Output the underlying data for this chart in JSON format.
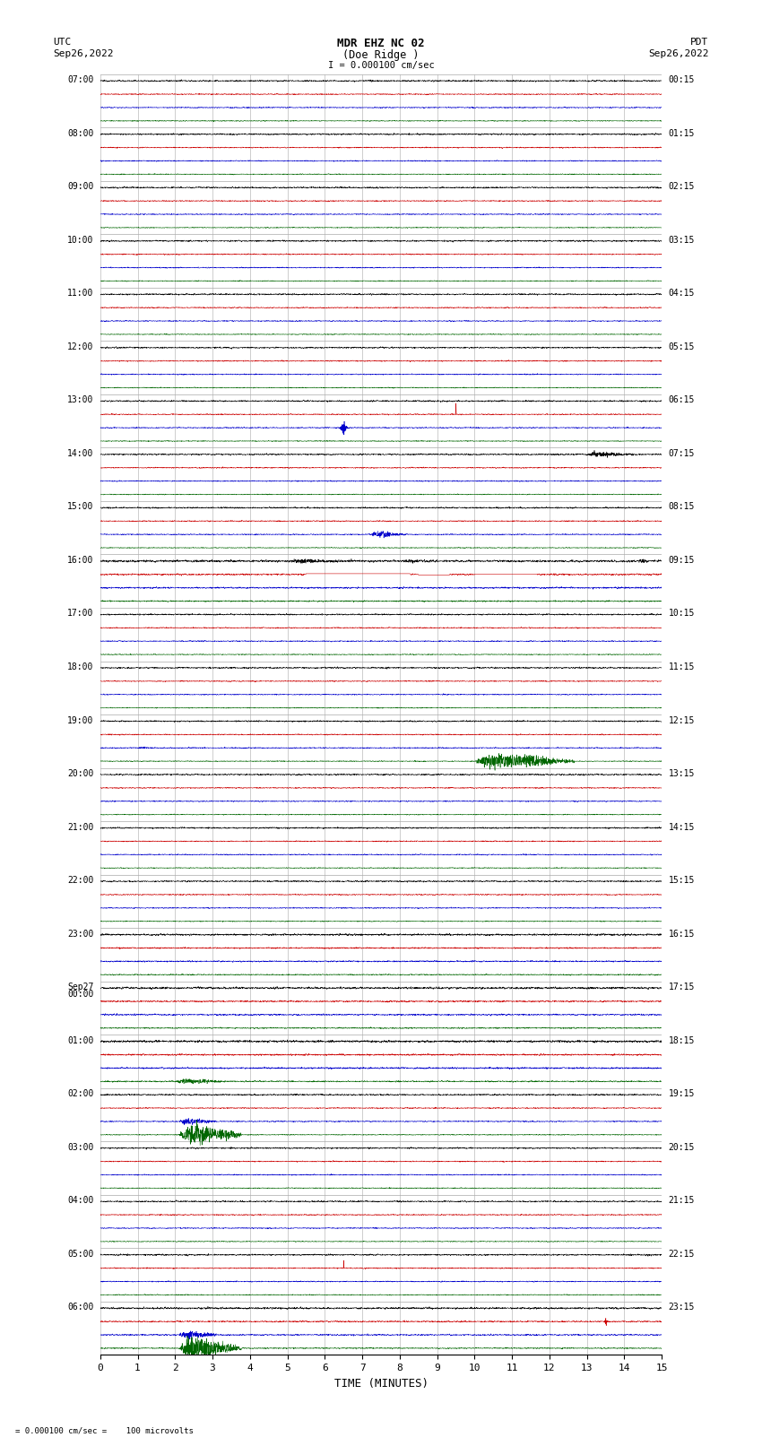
{
  "title_line1": "MDR EHZ NC 02",
  "title_line2": "(Doe Ridge )",
  "scale_text": "I = 0.000100 cm/sec",
  "bottom_text": "= 0.000100 cm/sec =    100 microvolts",
  "utc_label": "UTC",
  "utc_date": "Sep26,2022",
  "pdt_label": "PDT",
  "pdt_date": "Sep26,2022",
  "xlabel": "TIME (MINUTES)",
  "xmin": 0,
  "xmax": 15,
  "xticks": [
    0,
    1,
    2,
    3,
    4,
    5,
    6,
    7,
    8,
    9,
    10,
    11,
    12,
    13,
    14,
    15
  ],
  "bgcolor": "#ffffff",
  "trace_colors": [
    "#000000",
    "#cc0000",
    "#0000cc",
    "#006600"
  ],
  "left_labels": [
    "07:00",
    "08:00",
    "09:00",
    "10:00",
    "11:00",
    "12:00",
    "13:00",
    "14:00",
    "15:00",
    "16:00",
    "17:00",
    "18:00",
    "19:00",
    "20:00",
    "21:00",
    "22:00",
    "23:00",
    "Sep27",
    "01:00",
    "02:00",
    "03:00",
    "04:00",
    "05:00",
    "06:00"
  ],
  "left_labels_sub": [
    "",
    "",
    "",
    "",
    "",
    "",
    "",
    "",
    "",
    "",
    "",
    "",
    "",
    "",
    "",
    "",
    "",
    "00:00",
    "",
    "",
    "",
    "",
    "",
    ""
  ],
  "right_labels": [
    "00:15",
    "01:15",
    "02:15",
    "03:15",
    "04:15",
    "05:15",
    "06:15",
    "07:15",
    "08:15",
    "09:15",
    "10:15",
    "11:15",
    "12:15",
    "13:15",
    "14:15",
    "15:15",
    "16:15",
    "17:15",
    "18:15",
    "19:15",
    "20:15",
    "21:15",
    "22:15",
    "23:15"
  ],
  "n_rows": 24,
  "traces_per_row": 4,
  "base_noise": 0.025,
  "grid_color": "#aaaaaa",
  "label_fontsize": 7.0,
  "title_fontsize": 9
}
